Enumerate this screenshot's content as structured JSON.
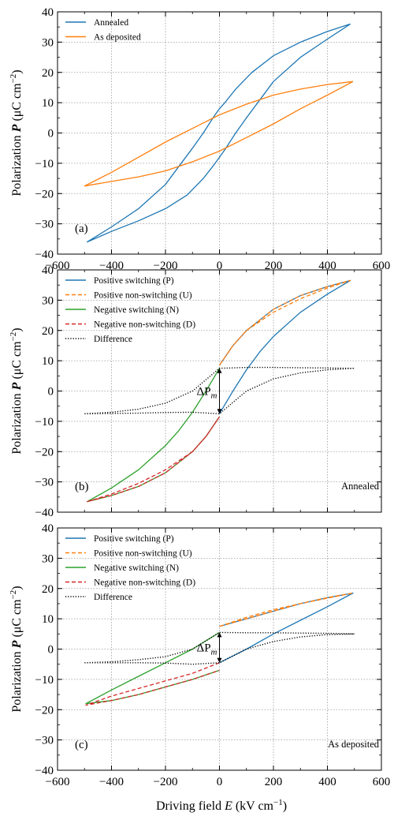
{
  "figure": {
    "xlabel_main": "Driving field ",
    "xlabel_var": "E",
    "xlabel_unit_pre": " (kV cm",
    "xlabel_unit_sup": "−1",
    "xlabel_unit_post": ")",
    "ylabel_main": "Polarization ",
    "ylabel_var": "P",
    "ylabel_unit_pre": " (μC cm",
    "ylabel_unit_sup": "−2",
    "ylabel_unit_post": ")",
    "delta_label_main": "ΔP",
    "delta_label_sub": "m"
  },
  "chart_data": [
    {
      "type": "line",
      "panel_label": "(a)",
      "note": "",
      "xlim": [
        -600,
        600
      ],
      "ylim": [
        -40,
        40
      ],
      "xticks": [
        -600,
        -400,
        -200,
        0,
        200,
        400,
        600
      ],
      "yticks": [
        -40,
        -30,
        -20,
        -10,
        0,
        10,
        20,
        30,
        40
      ],
      "xtick_labels": [
        "−600",
        "−400",
        "−200",
        "0",
        "200",
        "400",
        "600"
      ],
      "ytick_labels": [
        "−40",
        "−30",
        "−20",
        "−10",
        "0",
        "10",
        "20",
        "30",
        "40"
      ],
      "grid": true,
      "legend_position": "top-left",
      "series": [
        {
          "name": "Annealed",
          "color": "#1f77b4",
          "style": "solid",
          "x": [
            485,
            400,
            300,
            200,
            120,
            60,
            20,
            0,
            -20,
            -60,
            -100,
            -150,
            -200,
            -300,
            -400,
            -490,
            -400,
            -300,
            -200,
            -120,
            -60,
            -20,
            0,
            20,
            60,
            100,
            150,
            200,
            300,
            400,
            485
          ],
          "y": [
            36,
            33.5,
            30,
            25.5,
            20,
            14.5,
            10,
            8,
            5.5,
            0,
            -5,
            -11,
            -17,
            -25,
            -31,
            -36,
            -32.5,
            -29,
            -25,
            -20.5,
            -15,
            -10.5,
            -8,
            -5.5,
            0,
            5,
            11,
            17,
            25,
            31,
            36
          ]
        },
        {
          "name": "As deposited",
          "color": "#ff7f0e",
          "style": "solid",
          "x": [
            495,
            400,
            300,
            200,
            100,
            0,
            -100,
            -200,
            -300,
            -400,
            -500,
            -400,
            -300,
            -200,
            -100,
            0,
            100,
            200,
            300,
            400,
            495
          ],
          "y": [
            17,
            16,
            14.5,
            12.5,
            9.5,
            6,
            1.5,
            -3,
            -8,
            -13,
            -17.5,
            -16,
            -14.5,
            -12.5,
            -9.5,
            -6,
            -1.5,
            3,
            8,
            12.5,
            17
          ]
        }
      ]
    },
    {
      "type": "line",
      "panel_label": "(b)",
      "note": "Annealed",
      "xlim": [
        -600,
        600
      ],
      "ylim": [
        -40,
        40
      ],
      "xticks": [
        -600,
        -400,
        -200,
        0,
        200,
        400,
        600
      ],
      "yticks": [
        -40,
        -30,
        -20,
        -10,
        0,
        10,
        20,
        30,
        40
      ],
      "xtick_labels": [
        "",
        "",
        "",
        "",
        "",
        "",
        ""
      ],
      "ytick_labels": [
        "−40",
        "−30",
        "−20",
        "−10",
        "0",
        "10",
        "20",
        "30",
        "40"
      ],
      "grid": true,
      "legend_position": "top-left",
      "annotation_x": 0,
      "annotation_y_range": [
        -7.5,
        7.5
      ],
      "series": [
        {
          "name": "Positive switching (P)",
          "color": "#1f77b4",
          "style": "solid",
          "x": [
            0,
            50,
            100,
            150,
            200,
            300,
            400,
            485,
            400,
            300,
            200,
            100,
            50,
            0
          ],
          "y": [
            -7.5,
            0,
            7,
            13,
            18,
            26,
            32,
            36.5,
            34.5,
            31.5,
            27,
            20,
            15,
            8.5
          ]
        },
        {
          "name": "Positive non-switching (U)",
          "color": "#ff7f0e",
          "style": "dashed",
          "x": [
            0,
            50,
            100,
            200,
            300,
            400,
            485,
            400,
            300,
            200,
            100,
            50,
            0
          ],
          "y": [
            8.5,
            15,
            20,
            26,
            30.5,
            34,
            36.5,
            34.5,
            31.5,
            27,
            20,
            15,
            8.5
          ]
        },
        {
          "name": "Negative switching (N)",
          "color": "#2ca02c",
          "style": "solid",
          "x": [
            0,
            -50,
            -100,
            -150,
            -200,
            -300,
            -400,
            -490,
            -400,
            -300,
            -200,
            -100,
            -50,
            0
          ],
          "y": [
            7.5,
            0,
            -7,
            -13,
            -18,
            -26,
            -32,
            -36.5,
            -34.5,
            -31.5,
            -27,
            -20,
            -15,
            -8.5
          ]
        },
        {
          "name": "Negative non-switching (D)",
          "color": "#d62728",
          "style": "dashed",
          "x": [
            0,
            -50,
            -100,
            -200,
            -300,
            -400,
            -490,
            -400,
            -300,
            -200,
            -100,
            -50,
            0
          ],
          "y": [
            -8.5,
            -15,
            -20,
            -26,
            -30.5,
            -34,
            -36.5,
            -34.5,
            -31.5,
            -27,
            -20,
            -15,
            -8.5
          ]
        },
        {
          "name": "Difference",
          "color": "#000000",
          "style": "dotted",
          "x": [
            -500,
            -400,
            -300,
            -200,
            -100,
            0,
            100,
            200,
            300,
            400,
            500,
            400,
            300,
            200,
            100,
            0,
            -100,
            -200,
            -300,
            -400,
            -500
          ],
          "y": [
            -7.5,
            -7.4,
            -7.3,
            -7.1,
            -7,
            -7.5,
            0,
            4,
            6,
            7,
            7.5,
            7.6,
            7.7,
            7.8,
            7.8,
            7.5,
            0,
            -4,
            -6,
            -7,
            -7.5
          ]
        }
      ]
    },
    {
      "type": "line",
      "panel_label": "(c)",
      "note": "As deposited",
      "xlim": [
        -600,
        600
      ],
      "ylim": [
        -40,
        40
      ],
      "xticks": [
        -600,
        -400,
        -200,
        0,
        200,
        400,
        600
      ],
      "yticks": [
        -40,
        -30,
        -20,
        -10,
        0,
        10,
        20,
        30,
        40
      ],
      "xtick_labels": [
        "−600",
        "−400",
        "−200",
        "0",
        "200",
        "400",
        "600"
      ],
      "ytick_labels": [
        "−40",
        "−30",
        "−20",
        "−10",
        "0",
        "10",
        "20",
        "30",
        "40"
      ],
      "grid": true,
      "legend_position": "top-left",
      "annotation_x": 0,
      "annotation_y_range": [
        -4.5,
        5.5
      ],
      "series": [
        {
          "name": "Positive switching (P)",
          "color": "#1f77b4",
          "style": "solid",
          "x": [
            0,
            100,
            200,
            300,
            400,
            495,
            400,
            300,
            200,
            100,
            0
          ],
          "y": [
            -4.5,
            0,
            5,
            9.5,
            14,
            18.5,
            17,
            15,
            12.5,
            10,
            7.5
          ]
        },
        {
          "name": "Positive non-switching (U)",
          "color": "#ff7f0e",
          "style": "dashed",
          "x": [
            0,
            100,
            200,
            300,
            400,
            495,
            400,
            300,
            200,
            100,
            0
          ],
          "y": [
            7.5,
            10.5,
            13,
            15,
            16.8,
            18.5,
            17,
            15,
            12.5,
            10,
            7.5
          ]
        },
        {
          "name": "Negative switching (N)",
          "color": "#2ca02c",
          "style": "solid",
          "x": [
            0,
            -100,
            -200,
            -300,
            -400,
            -495,
            -400,
            -300,
            -200,
            -100,
            0
          ],
          "y": [
            5.5,
            0,
            -4.5,
            -9,
            -13.5,
            -18,
            -17,
            -15,
            -12.5,
            -10,
            -7
          ]
        },
        {
          "name": "Negative non-switching (D)",
          "color": "#d62728",
          "style": "dashed",
          "x": [
            0,
            -100,
            -200,
            -300,
            -400,
            -495,
            -400,
            -300,
            -200,
            -100,
            0
          ],
          "y": [
            -4.5,
            -8,
            -10.5,
            -13,
            -15.5,
            -18.5,
            -17,
            -15,
            -12.5,
            -10,
            -7
          ]
        },
        {
          "name": "Difference",
          "color": "#000000",
          "style": "dotted",
          "x": [
            -500,
            -400,
            -300,
            -200,
            -100,
            0,
            100,
            200,
            300,
            400,
            500,
            400,
            300,
            200,
            100,
            0,
            -100,
            -200,
            -300,
            -400,
            -500
          ],
          "y": [
            -4.5,
            -4.5,
            -4.5,
            -4.6,
            -5,
            -4.5,
            0,
            2.5,
            4,
            4.8,
            5,
            5.2,
            5.3,
            5.4,
            5.4,
            5.5,
            0,
            -2.5,
            -3.5,
            -4.2,
            -4.5
          ]
        }
      ]
    }
  ]
}
